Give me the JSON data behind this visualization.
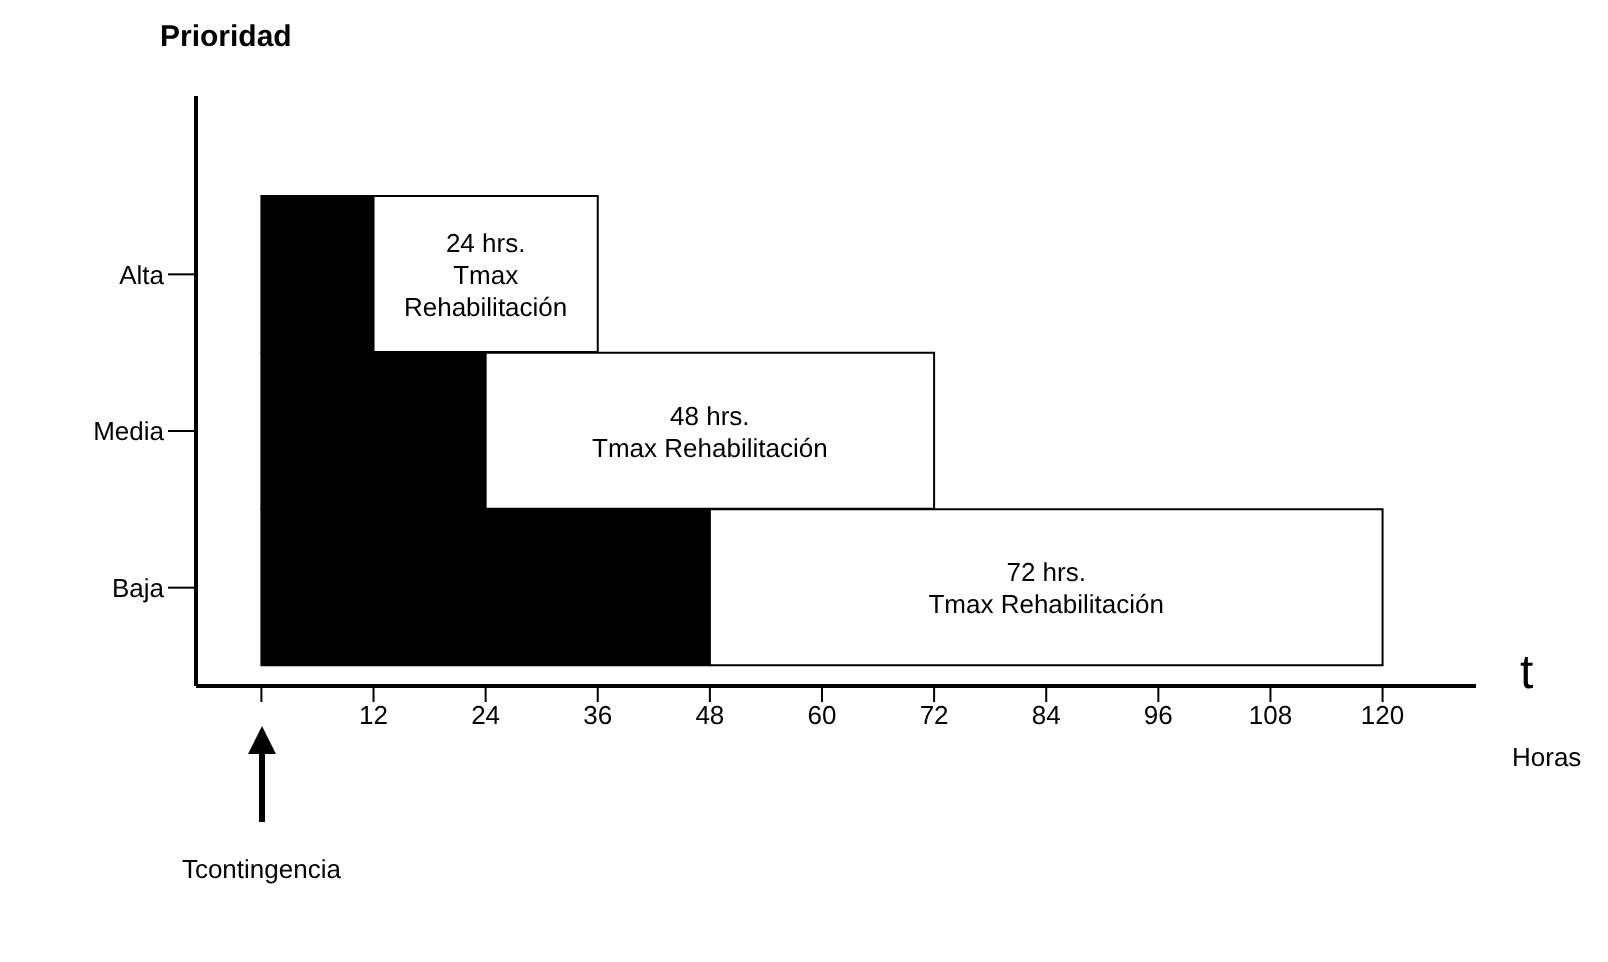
{
  "chart_data": {
    "type": "bar",
    "orientation": "horizontal",
    "stacked": true,
    "ylabel": "Prioridad",
    "xlabel": "t",
    "categories": [
      "Alta",
      "Media",
      "Baja"
    ],
    "series": [
      {
        "color": "#000000",
        "values": [
          12,
          24,
          48
        ]
      },
      {
        "color": "#ffffff",
        "values": [
          24,
          48,
          72
        ]
      }
    ],
    "xlim": [
      -7,
      130
    ],
    "xticks": [
      {
        "value": 0,
        "label": null
      },
      12,
      24,
      36,
      48,
      60,
      72,
      84,
      96,
      108,
      120
    ],
    "annotations": [
      "24 hrs.\nTmax\nRehabilitación",
      "48 hrs.\nTmax Rehabilitación",
      "72 hrs.\nTmax Rehabilitación",
      "Tcontingencia",
      "Horas"
    ]
  }
}
